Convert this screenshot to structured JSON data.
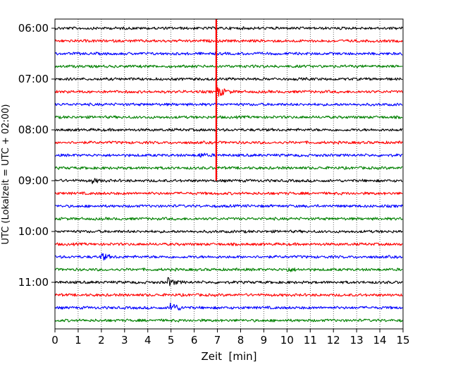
{
  "chart_data": {
    "type": "line",
    "subtype": "helicorder",
    "xlabel": "Zeit  [min]",
    "ylabel": "UTC (Lokalzeit = UTC + 02:00)",
    "xlim": [
      0,
      15
    ],
    "x_ticks": [
      "0",
      "1",
      "2",
      "3",
      "4",
      "5",
      "6",
      "7",
      "8",
      "9",
      "10",
      "11",
      "12",
      "13",
      "14",
      "15"
    ],
    "y_tick_labels": [
      "06:00",
      "07:00",
      "08:00",
      "09:00",
      "10:00",
      "11:00"
    ],
    "trace_interval_minutes": 15,
    "trace_start_times": [
      "06:00",
      "06:15",
      "06:30",
      "06:45",
      "07:00",
      "07:15",
      "07:30",
      "07:45",
      "08:00",
      "08:15",
      "08:30",
      "08:45",
      "09:00",
      "09:15",
      "09:30",
      "09:45",
      "10:00",
      "10:15",
      "10:30",
      "10:45",
      "11:00",
      "11:15",
      "11:30",
      "11:45"
    ],
    "color_cycle": [
      "#000000",
      "#ff0000",
      "#0000ff",
      "#008000"
    ],
    "grid": "vertical dotted lines at each minute",
    "events": [
      {
        "start_time": "06:00",
        "through": "09:00",
        "minute": 6.95,
        "description": "large vertical spike through traces"
      },
      {
        "start_time": "07:15",
        "minute": 7.0,
        "description": "large burst"
      },
      {
        "start_time": "08:30",
        "minute": 6.2,
        "description": "small burst"
      },
      {
        "start_time": "09:00",
        "minute": 1.6,
        "description": "small burst"
      },
      {
        "start_time": "10:30",
        "minute": 2.0,
        "description": "burst"
      },
      {
        "start_time": "10:45",
        "minute": 10.0,
        "description": "small burst"
      },
      {
        "start_time": "11:00",
        "minute": 4.9,
        "description": "burst"
      },
      {
        "start_time": "11:30",
        "minute": 5.0,
        "description": "large burst"
      }
    ]
  }
}
